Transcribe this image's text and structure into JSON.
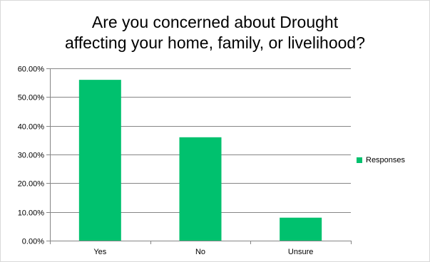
{
  "chart_data": {
    "type": "bar",
    "title_lines": [
      "Are you concerned about Drought",
      "affecting your home, family, or livelihood?"
    ],
    "categories": [
      "Yes",
      "No",
      "Unsure"
    ],
    "series": [
      {
        "name": "Responses",
        "values": [
          0.56,
          0.36,
          0.08
        ]
      }
    ],
    "y_ticks": [
      "0.00%",
      "10.00%",
      "20.00%",
      "30.00%",
      "40.00%",
      "50.00%",
      "60.00%"
    ],
    "ylim": [
      0,
      0.6
    ],
    "grid": true,
    "legend_position": "right",
    "bar_color": "#00c16e"
  }
}
